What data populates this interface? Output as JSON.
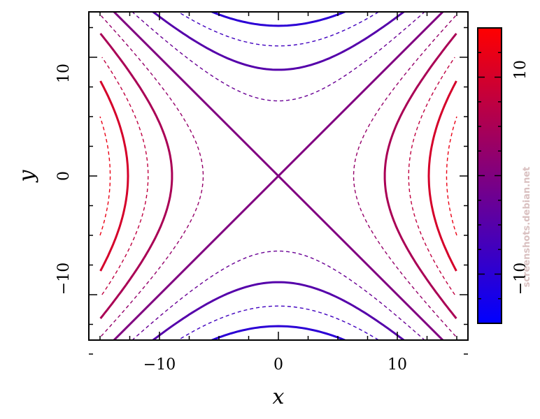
{
  "chart_data": {
    "type": "contour",
    "title": "",
    "xlabel": "x",
    "ylabel": "y",
    "xlim": [
      -16,
      16
    ],
    "ylim": [
      -16,
      16
    ],
    "xticks": [
      -10,
      0,
      10
    ],
    "yticks": [
      -10,
      0,
      10
    ],
    "x_tick_labels": [
      "−10",
      "0",
      "10"
    ],
    "y_tick_labels": [
      "−10",
      "0",
      "10"
    ],
    "function": "z = (x^2 - y^2) / 16",
    "levels_solid": [
      -10,
      -5,
      0,
      5,
      10
    ],
    "levels_dashed": [
      -15,
      -12.5,
      -7.5,
      -2.5,
      2.5,
      7.5,
      12.5
    ],
    "colormap": [
      "#0000ff",
      "#ff0000"
    ],
    "colorbar": {
      "range": [
        -15,
        15
      ],
      "tick_labels": [
        "10",
        "−10"
      ],
      "tick_values": [
        10,
        -10
      ]
    }
  },
  "watermark": "screenshots.debian.net"
}
